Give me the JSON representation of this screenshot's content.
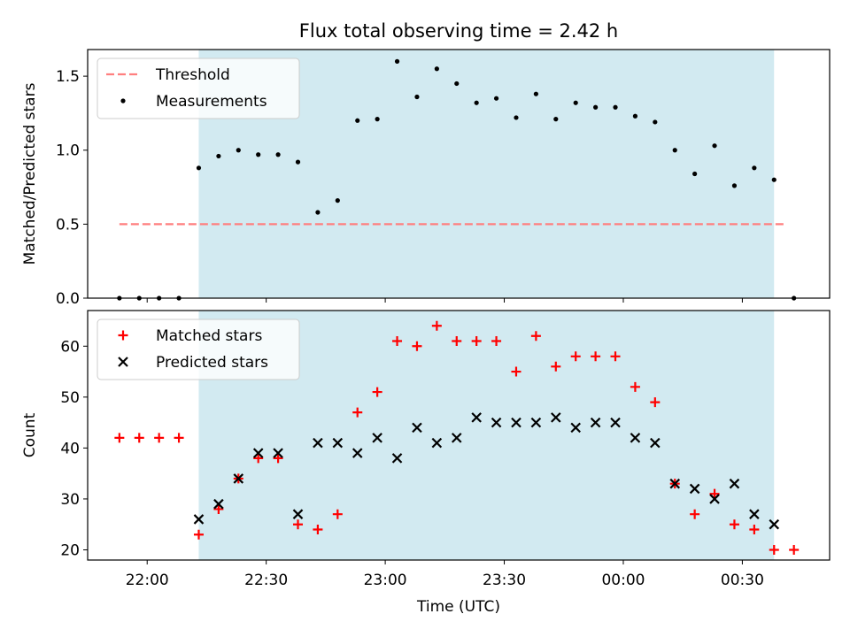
{
  "chart_data": {
    "type": "scatter",
    "title": "Flux total observing time = 2.42 h",
    "xlabel": "Time (UTC)",
    "x_ticks": [
      "22:00",
      "22:30",
      "23:00",
      "23:30",
      "00:00",
      "00:30"
    ],
    "x_tick_minutes": [
      0,
      30,
      60,
      90,
      120,
      150
    ],
    "xlim_minutes": [
      -15,
      172
    ],
    "observing_window_minutes": [
      13,
      158
    ],
    "colors": {
      "window": "#add8e6",
      "threshold": "#ff7f7f",
      "matched": "#ff0000",
      "predicted": "#000000",
      "measurement": "#000000"
    },
    "panels": [
      {
        "id": "ratio",
        "ylabel": "Matched/Predicted stars",
        "ylim": [
          0,
          1.68
        ],
        "y_ticks": [
          0.0,
          0.5,
          1.0,
          1.5
        ],
        "y_tick_labels": [
          "0.0",
          "0.5",
          "1.0",
          "1.5"
        ],
        "legend": "top-left",
        "threshold": {
          "name": "Threshold",
          "value": 0.5,
          "x_range_minutes": [
            -7,
            161
          ]
        },
        "series": [
          {
            "name": "Measurements",
            "marker": "dot",
            "x_minutes": [
              -7,
              -2,
              3,
              8,
              13,
              18,
              23,
              28,
              33,
              38,
              43,
              48,
              53,
              58,
              63,
              68,
              73,
              78,
              83,
              88,
              93,
              98,
              103,
              108,
              113,
              118,
              123,
              128,
              133,
              138,
              143,
              148,
              153,
              158,
              163
            ],
            "values": [
              0,
              0,
              0,
              0,
              0.88,
              0.96,
              1.0,
              0.97,
              0.97,
              0.92,
              0.58,
              0.66,
              1.2,
              1.21,
              1.6,
              1.36,
              1.55,
              1.45,
              1.32,
              1.35,
              1.22,
              1.38,
              1.21,
              1.32,
              1.29,
              1.29,
              1.23,
              1.19,
              1.0,
              0.84,
              1.03,
              0.76,
              0.88,
              0.8,
              0
            ]
          }
        ]
      },
      {
        "id": "count",
        "ylabel": "Count",
        "ylim": [
          18,
          67
        ],
        "y_ticks": [
          20,
          30,
          40,
          50,
          60
        ],
        "y_tick_labels": [
          "20",
          "30",
          "40",
          "50",
          "60"
        ],
        "legend": "top-left",
        "series": [
          {
            "name": "Matched stars",
            "marker": "plus",
            "x_minutes": [
              -7,
              -2,
              3,
              8,
              13,
              18,
              23,
              28,
              33,
              38,
              43,
              48,
              53,
              58,
              63,
              68,
              73,
              78,
              83,
              88,
              93,
              98,
              103,
              108,
              113,
              118,
              123,
              128,
              133,
              138,
              143,
              148,
              153,
              158,
              163
            ],
            "values": [
              42,
              42,
              42,
              42,
              23,
              28,
              34,
              38,
              38,
              25,
              24,
              27,
              47,
              51,
              61,
              60,
              64,
              61,
              61,
              61,
              55,
              62,
              56,
              58,
              58,
              58,
              52,
              49,
              33,
              27,
              31,
              25,
              24,
              20,
              20
            ]
          },
          {
            "name": "Predicted stars",
            "marker": "x",
            "x_minutes": [
              13,
              18,
              23,
              28,
              33,
              38,
              43,
              48,
              53,
              58,
              63,
              68,
              73,
              78,
              83,
              88,
              93,
              98,
              103,
              108,
              113,
              118,
              123,
              128,
              133,
              138,
              143,
              148,
              153,
              158
            ],
            "values": [
              26,
              29,
              34,
              39,
              39,
              27,
              41,
              41,
              39,
              42,
              38,
              44,
              41,
              42,
              46,
              45,
              45,
              45,
              46,
              44,
              45,
              45,
              42,
              41,
              33,
              32,
              30,
              33,
              27,
              25
            ]
          }
        ]
      }
    ]
  }
}
